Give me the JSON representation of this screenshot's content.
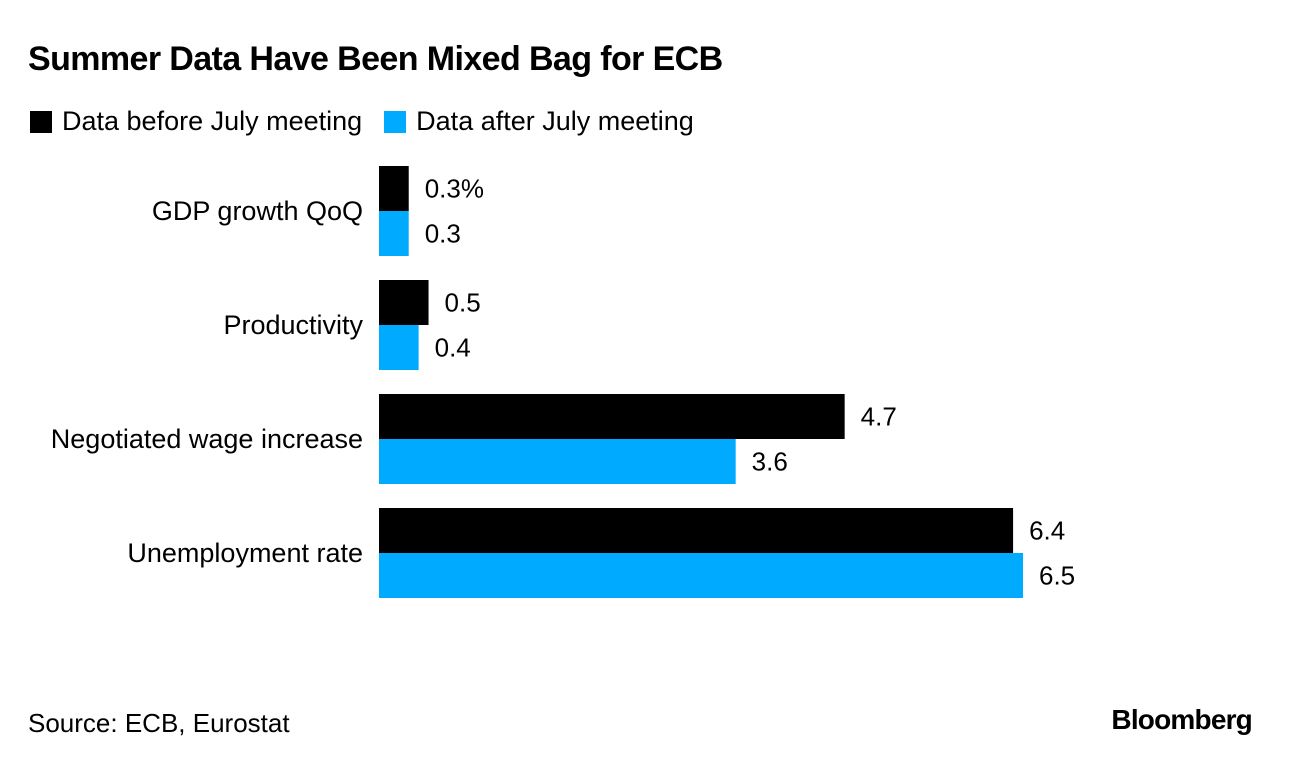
{
  "chart_data": {
    "type": "bar",
    "orientation": "horizontal",
    "title": "Summer Data Have Been Mixed Bag for ECB",
    "categories": [
      "GDP growth QoQ",
      "Productivity",
      "Negotiated wage increase",
      "Unemployment rate"
    ],
    "series": [
      {
        "name": "Data before July meeting",
        "color": "#000000",
        "values": [
          0.3,
          0.5,
          4.7,
          6.4
        ],
        "labels": [
          "0.3%",
          "0.5",
          "4.7",
          "6.4"
        ]
      },
      {
        "name": "Data after July meeting",
        "color": "#00aaff",
        "values": [
          0.3,
          0.4,
          3.6,
          6.5
        ],
        "labels": [
          "0.3",
          "0.4",
          "3.6",
          "6.5"
        ]
      }
    ],
    "xlim": [
      0,
      6.5
    ],
    "grid": false,
    "legend_position": "top-left"
  },
  "footer": {
    "source": "Source: ECB, Eurostat",
    "brand": "Bloomberg"
  }
}
